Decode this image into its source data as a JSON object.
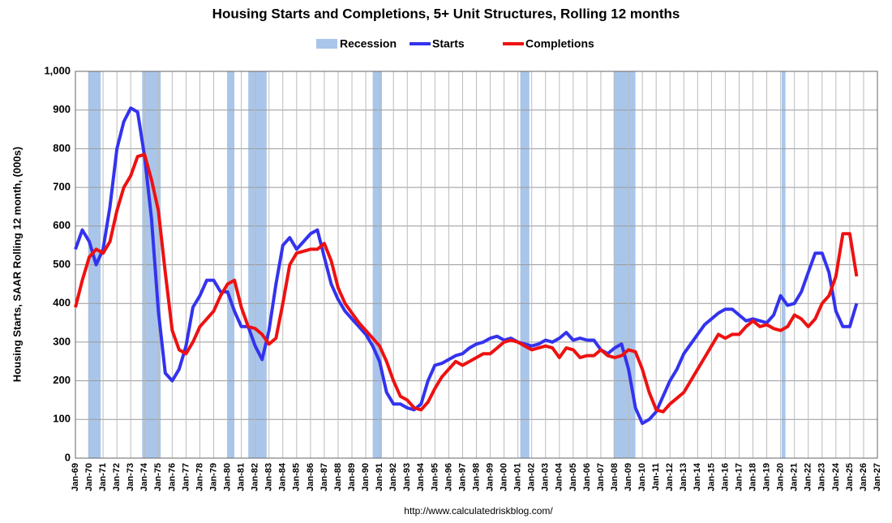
{
  "chart_data": {
    "type": "line",
    "title": "Housing Starts and Completions, 5+ Unit Structures, Rolling 12 months",
    "y_label": "Housing Starts, SAAR Rolling 12 month, (000s)",
    "source": "http://www.calculatedriskblog.com/",
    "grid": true,
    "legend": "top",
    "recession": {
      "name": "Recession",
      "color": "#a9c6ea",
      "periods": [
        [
          1969.92,
          1970.83
        ],
        [
          1973.83,
          1975.17
        ],
        [
          1980.0,
          1980.5
        ],
        [
          1981.5,
          1982.83
        ],
        [
          1990.5,
          1991.17
        ],
        [
          2001.17,
          2001.83
        ],
        [
          2007.92,
          2009.5
        ],
        [
          2020.08,
          2020.35
        ]
      ]
    },
    "xlim": [
      1969,
      2027
    ],
    "ylim": [
      0,
      1000
    ],
    "yticks": [
      0,
      100,
      200,
      300,
      400,
      500,
      600,
      700,
      800,
      900,
      {
        "value": 1000,
        "label": "1,000"
      }
    ],
    "xticks": [
      {
        "value": 1969,
        "label": "Jan-69"
      },
      {
        "value": 1970,
        "label": "Jan-70"
      },
      {
        "value": 1971,
        "label": "Jan-71"
      },
      {
        "value": 1972,
        "label": "Jan-72"
      },
      {
        "value": 1973,
        "label": "Jan-73"
      },
      {
        "value": 1974,
        "label": "Jan-74"
      },
      {
        "value": 1975,
        "label": "Jan-75"
      },
      {
        "value": 1976,
        "label": "Jan-76"
      },
      {
        "value": 1977,
        "label": "Jan-77"
      },
      {
        "value": 1978,
        "label": "Jan-78"
      },
      {
        "value": 1979,
        "label": "Jan-79"
      },
      {
        "value": 1980,
        "label": "Jan-80"
      },
      {
        "value": 1981,
        "label": "Jan-81"
      },
      {
        "value": 1982,
        "label": "Jan-82"
      },
      {
        "value": 1983,
        "label": "Jan-83"
      },
      {
        "value": 1984,
        "label": "Jan-84"
      },
      {
        "value": 1985,
        "label": "Jan-85"
      },
      {
        "value": 1986,
        "label": "Jan-86"
      },
      {
        "value": 1987,
        "label": "Jan-87"
      },
      {
        "value": 1988,
        "label": "Jan-88"
      },
      {
        "value": 1989,
        "label": "Jan-89"
      },
      {
        "value": 1990,
        "label": "Jan-90"
      },
      {
        "value": 1991,
        "label": "Jan-91"
      },
      {
        "value": 1992,
        "label": "Jan-92"
      },
      {
        "value": 1993,
        "label": "Jan-93"
      },
      {
        "value": 1994,
        "label": "Jan-94"
      },
      {
        "value": 1995,
        "label": "Jan-95"
      },
      {
        "value": 1996,
        "label": "Jan-96"
      },
      {
        "value": 1997,
        "label": "Jan-97"
      },
      {
        "value": 1998,
        "label": "Jan-98"
      },
      {
        "value": 1999,
        "label": "Jan-99"
      },
      {
        "value": 2000,
        "label": "Jan-00"
      },
      {
        "value": 2001,
        "label": "Jan-01"
      },
      {
        "value": 2002,
        "label": "Jan-02"
      },
      {
        "value": 2003,
        "label": "Jan-03"
      },
      {
        "value": 2004,
        "label": "Jan-04"
      },
      {
        "value": 2005,
        "label": "Jan-05"
      },
      {
        "value": 2006,
        "label": "Jan-06"
      },
      {
        "value": 2007,
        "label": "Jan-07"
      },
      {
        "value": 2008,
        "label": "Jan-08"
      },
      {
        "value": 2009,
        "label": "Jan-09"
      },
      {
        "value": 2010,
        "label": "Jan-10"
      },
      {
        "value": 2011,
        "label": "Jan-11"
      },
      {
        "value": 2012,
        "label": "Jan-12"
      },
      {
        "value": 2013,
        "label": "Jan-13"
      },
      {
        "value": 2014,
        "label": "Jan-14"
      },
      {
        "value": 2015,
        "label": "Jan-15"
      },
      {
        "value": 2016,
        "label": "Jan-16"
      },
      {
        "value": 2017,
        "label": "Jan-17"
      },
      {
        "value": 2018,
        "label": "Jan-18"
      },
      {
        "value": 2019,
        "label": "Jan-19"
      },
      {
        "value": 2020,
        "label": "Jan-20"
      },
      {
        "value": 2021,
        "label": "Jan-21"
      },
      {
        "value": 2022,
        "label": "Jan-22"
      },
      {
        "value": 2023,
        "label": "Jan-23"
      },
      {
        "value": 2024,
        "label": "Jan-24"
      },
      {
        "value": 2025,
        "label": "Jan-25"
      },
      {
        "value": 2026,
        "label": "Jan-26"
      },
      {
        "value": 2027,
        "label": "Jan-27"
      }
    ],
    "x": [
      1969,
      1969.5,
      1970,
      1970.5,
      1971,
      1971.5,
      1972,
      1972.5,
      1973,
      1973.5,
      1974,
      1974.5,
      1975,
      1975.5,
      1976,
      1976.5,
      1977,
      1977.5,
      1978,
      1978.5,
      1979,
      1979.5,
      1980,
      1980.5,
      1981,
      1981.5,
      1982,
      1982.5,
      1983,
      1983.5,
      1984,
      1984.5,
      1985,
      1985.5,
      1986,
      1986.5,
      1987,
      1987.5,
      1988,
      1988.5,
      1989,
      1989.5,
      1990,
      1990.5,
      1991,
      1991.5,
      1992,
      1992.5,
      1993,
      1993.5,
      1994,
      1994.5,
      1995,
      1995.5,
      1996,
      1996.5,
      1997,
      1997.5,
      1998,
      1998.5,
      1999,
      1999.5,
      2000,
      2000.5,
      2001,
      2001.5,
      2002,
      2002.5,
      2003,
      2003.5,
      2004,
      2004.5,
      2005,
      2005.5,
      2006,
      2006.5,
      2007,
      2007.5,
      2008,
      2008.5,
      2009,
      2009.5,
      2010,
      2010.5,
      2011,
      2011.5,
      2012,
      2012.5,
      2013,
      2013.5,
      2014,
      2014.5,
      2015,
      2015.5,
      2016,
      2016.5,
      2017,
      2017.5,
      2018,
      2018.5,
      2019,
      2019.5,
      2020,
      2020.5,
      2021,
      2021.5,
      2022,
      2022.5,
      2023,
      2023.5,
      2024,
      2024.5,
      2025,
      2025.5
    ],
    "series": [
      {
        "name": "Starts",
        "color": "#3333ee",
        "values": [
          540,
          590,
          560,
          500,
          540,
          650,
          800,
          870,
          905,
          895,
          780,
          620,
          380,
          220,
          200,
          230,
          290,
          390,
          420,
          460,
          460,
          430,
          430,
          380,
          340,
          340,
          290,
          255,
          330,
          450,
          550,
          570,
          540,
          560,
          580,
          590,
          520,
          450,
          410,
          380,
          360,
          340,
          320,
          290,
          250,
          170,
          140,
          140,
          130,
          125,
          140,
          200,
          240,
          245,
          255,
          265,
          270,
          285,
          295,
          300,
          310,
          315,
          305,
          310,
          300,
          295,
          290,
          295,
          305,
          300,
          310,
          325,
          305,
          310,
          305,
          305,
          280,
          270,
          285,
          295,
          230,
          130,
          90,
          100,
          120,
          160,
          200,
          230,
          270,
          295,
          320,
          345,
          360,
          375,
          385,
          385,
          370,
          355,
          360,
          355,
          350,
          370,
          420,
          395,
          400,
          430,
          480,
          530,
          530,
          480,
          380,
          340,
          340,
          400
        ]
      },
      {
        "name": "Completions",
        "color": "#ee1111",
        "values": [
          390,
          460,
          520,
          540,
          530,
          560,
          640,
          700,
          730,
          780,
          785,
          720,
          640,
          480,
          330,
          280,
          270,
          300,
          340,
          360,
          380,
          420,
          450,
          460,
          390,
          340,
          335,
          320,
          295,
          310,
          400,
          500,
          530,
          535,
          540,
          540,
          555,
          510,
          440,
          400,
          375,
          350,
          330,
          310,
          290,
          250,
          200,
          160,
          150,
          130,
          125,
          145,
          180,
          210,
          230,
          250,
          240,
          250,
          260,
          270,
          270,
          285,
          300,
          305,
          300,
          290,
          280,
          285,
          290,
          285,
          260,
          285,
          280,
          260,
          265,
          265,
          280,
          265,
          260,
          265,
          280,
          275,
          230,
          170,
          125,
          120,
          140,
          155,
          170,
          200,
          230,
          260,
          290,
          320,
          310,
          320,
          320,
          340,
          355,
          340,
          345,
          335,
          330,
          340,
          370,
          360,
          340,
          360,
          400,
          420,
          470,
          580,
          580,
          470
        ]
      }
    ]
  }
}
